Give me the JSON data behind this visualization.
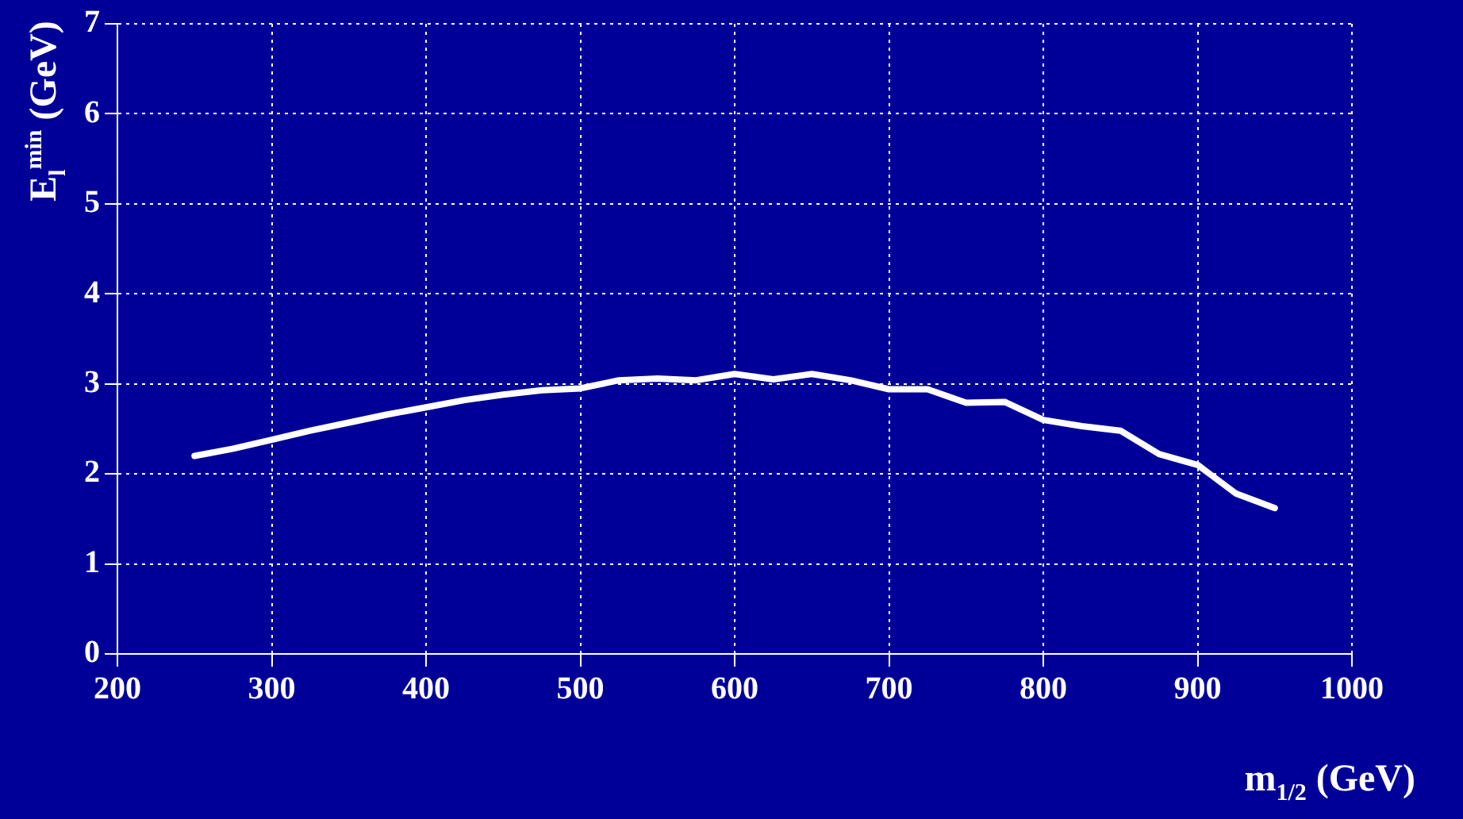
{
  "chart_data": {
    "type": "line",
    "xlabel": "m$_{1/2}$ (GeV)",
    "ylabel": "E$_{l}$$^{min}$ (GeV)",
    "x": [
      250,
      275,
      300,
      325,
      350,
      375,
      400,
      425,
      450,
      475,
      500,
      525,
      550,
      575,
      600,
      625,
      650,
      675,
      700,
      725,
      750,
      775,
      800,
      825,
      850,
      875,
      900,
      925,
      950
    ],
    "series": [
      {
        "color": "#ffffff",
        "values": [
          2.2,
          2.28,
          2.38,
          2.48,
          2.57,
          2.66,
          2.74,
          2.82,
          2.88,
          2.93,
          2.95,
          3.04,
          3.06,
          3.04,
          3.11,
          3.05,
          3.11,
          3.04,
          2.94,
          2.94,
          2.79,
          2.8,
          2.6,
          2.53,
          2.48,
          2.22,
          2.1,
          1.78,
          1.62
        ]
      }
    ],
    "xlim": [
      200,
      1000
    ],
    "xticks": [
      200,
      300,
      400,
      500,
      600,
      700,
      800,
      900,
      1000
    ],
    "ylim": [
      0,
      7
    ],
    "yticks": [
      0,
      1,
      2,
      3,
      4,
      5,
      6,
      7
    ],
    "grid": true,
    "legend": false,
    "marker": "none",
    "line_style": "solid"
  }
}
